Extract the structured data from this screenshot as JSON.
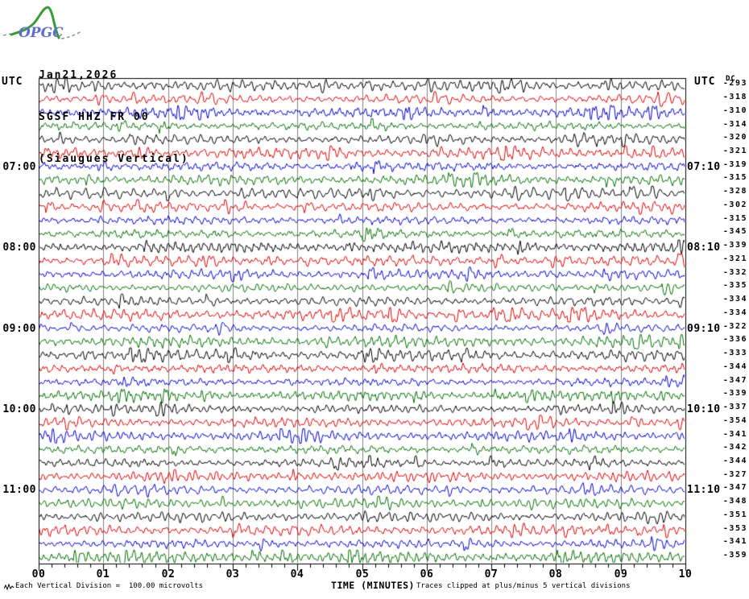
{
  "logo": {
    "text": "OPGC"
  },
  "header": {
    "date": "Jan21,2026",
    "station": "SGSF HHZ FR 00",
    "location": "(Siaugues Vertical)"
  },
  "axis": {
    "left_utc": "UTC",
    "right_utc": "UTC",
    "dc_header": "DC",
    "x_tick_labels": [
      "00",
      "01",
      "02",
      "03",
      "04",
      "05",
      "06",
      "07",
      "08",
      "09",
      "10"
    ],
    "x_title": "TIME (MINUTES)"
  },
  "footer": {
    "scale_note": "Each Vertical Division =  100.00 microvolts",
    "clip_note": "Traces clipped at plus/minus 5 vertical divisions"
  },
  "colors": {
    "black": "#000000",
    "red": "#dd0000",
    "blue": "#0000cc",
    "green": "#007000",
    "grid": "#808080",
    "border": "#000000",
    "logo_green": "#3a9a3a",
    "logo_blue": "#5b6ec9"
  },
  "chart_data": {
    "type": "line",
    "subtype": "helicorder-seismogram",
    "title": "SGSF HHZ FR 00 (Siaugues Vertical) Jan21,2026",
    "xlabel": "TIME (MINUTES)",
    "x_range_minutes": [
      0,
      10
    ],
    "minutes_per_row": 10,
    "grid": "vertical-minute-lines",
    "trace_color_cycle": [
      "black",
      "red",
      "blue",
      "green"
    ],
    "amplitude_note": "Each Vertical Division = 100.00 microvolts; traces clipped at plus/minus 5 vertical divisions",
    "rows": [
      {
        "start": "06:00",
        "end": "06:10",
        "color": "black",
        "dc": -293,
        "left_label": "",
        "right_label": ""
      },
      {
        "start": "06:10",
        "end": "06:20",
        "color": "red",
        "dc": -318,
        "left_label": "",
        "right_label": ""
      },
      {
        "start": "06:20",
        "end": "06:30",
        "color": "blue",
        "dc": -310,
        "left_label": "",
        "right_label": ""
      },
      {
        "start": "06:30",
        "end": "06:40",
        "color": "green",
        "dc": -314,
        "left_label": "",
        "right_label": ""
      },
      {
        "start": "06:40",
        "end": "06:50",
        "color": "black",
        "dc": -320,
        "left_label": "",
        "right_label": ""
      },
      {
        "start": "06:50",
        "end": "07:00",
        "color": "red",
        "dc": -321,
        "left_label": "",
        "right_label": ""
      },
      {
        "start": "07:00",
        "end": "07:10",
        "color": "blue",
        "dc": -319,
        "left_label": "07:00",
        "right_label": "07:10"
      },
      {
        "start": "07:10",
        "end": "07:20",
        "color": "green",
        "dc": -315,
        "left_label": "",
        "right_label": ""
      },
      {
        "start": "07:20",
        "end": "07:30",
        "color": "black",
        "dc": -328,
        "left_label": "",
        "right_label": ""
      },
      {
        "start": "07:30",
        "end": "07:40",
        "color": "red",
        "dc": -302,
        "left_label": "",
        "right_label": ""
      },
      {
        "start": "07:40",
        "end": "07:50",
        "color": "blue",
        "dc": -315,
        "left_label": "",
        "right_label": ""
      },
      {
        "start": "07:50",
        "end": "08:00",
        "color": "green",
        "dc": -345,
        "left_label": "",
        "right_label": ""
      },
      {
        "start": "08:00",
        "end": "08:10",
        "color": "black",
        "dc": -339,
        "left_label": "08:00",
        "right_label": "08:10"
      },
      {
        "start": "08:10",
        "end": "08:20",
        "color": "red",
        "dc": -321,
        "left_label": "",
        "right_label": ""
      },
      {
        "start": "08:20",
        "end": "08:30",
        "color": "blue",
        "dc": -332,
        "left_label": "",
        "right_label": ""
      },
      {
        "start": "08:30",
        "end": "08:40",
        "color": "green",
        "dc": -335,
        "left_label": "",
        "right_label": ""
      },
      {
        "start": "08:40",
        "end": "08:50",
        "color": "black",
        "dc": -334,
        "left_label": "",
        "right_label": ""
      },
      {
        "start": "08:50",
        "end": "09:00",
        "color": "red",
        "dc": -334,
        "left_label": "",
        "right_label": ""
      },
      {
        "start": "09:00",
        "end": "09:10",
        "color": "blue",
        "dc": -322,
        "left_label": "09:00",
        "right_label": "09:10"
      },
      {
        "start": "09:10",
        "end": "09:20",
        "color": "green",
        "dc": -336,
        "left_label": "",
        "right_label": ""
      },
      {
        "start": "09:20",
        "end": "09:30",
        "color": "black",
        "dc": -333,
        "left_label": "",
        "right_label": ""
      },
      {
        "start": "09:30",
        "end": "09:40",
        "color": "red",
        "dc": -344,
        "left_label": "",
        "right_label": ""
      },
      {
        "start": "09:40",
        "end": "09:50",
        "color": "blue",
        "dc": -347,
        "left_label": "",
        "right_label": ""
      },
      {
        "start": "09:50",
        "end": "10:00",
        "color": "green",
        "dc": -339,
        "left_label": "",
        "right_label": ""
      },
      {
        "start": "10:00",
        "end": "10:10",
        "color": "black",
        "dc": -337,
        "left_label": "10:00",
        "right_label": "10:10"
      },
      {
        "start": "10:10",
        "end": "10:20",
        "color": "red",
        "dc": -354,
        "left_label": "",
        "right_label": ""
      },
      {
        "start": "10:20",
        "end": "10:30",
        "color": "blue",
        "dc": -341,
        "left_label": "",
        "right_label": ""
      },
      {
        "start": "10:30",
        "end": "10:40",
        "color": "green",
        "dc": -342,
        "left_label": "",
        "right_label": ""
      },
      {
        "start": "10:40",
        "end": "10:50",
        "color": "black",
        "dc": -344,
        "left_label": "",
        "right_label": ""
      },
      {
        "start": "10:50",
        "end": "11:00",
        "color": "red",
        "dc": -327,
        "left_label": "",
        "right_label": ""
      },
      {
        "start": "11:00",
        "end": "11:10",
        "color": "blue",
        "dc": -347,
        "left_label": "11:00",
        "right_label": "11:10"
      },
      {
        "start": "11:10",
        "end": "11:20",
        "color": "green",
        "dc": -348,
        "left_label": "",
        "right_label": ""
      },
      {
        "start": "11:20",
        "end": "11:30",
        "color": "black",
        "dc": -351,
        "left_label": "",
        "right_label": ""
      },
      {
        "start": "11:30",
        "end": "11:40",
        "color": "red",
        "dc": -353,
        "left_label": "",
        "right_label": ""
      },
      {
        "start": "11:40",
        "end": "11:50",
        "color": "blue",
        "dc": -341,
        "left_label": "",
        "right_label": ""
      },
      {
        "start": "11:50",
        "end": "12:00",
        "color": "green",
        "dc": -359,
        "left_label": "",
        "right_label": ""
      }
    ]
  }
}
